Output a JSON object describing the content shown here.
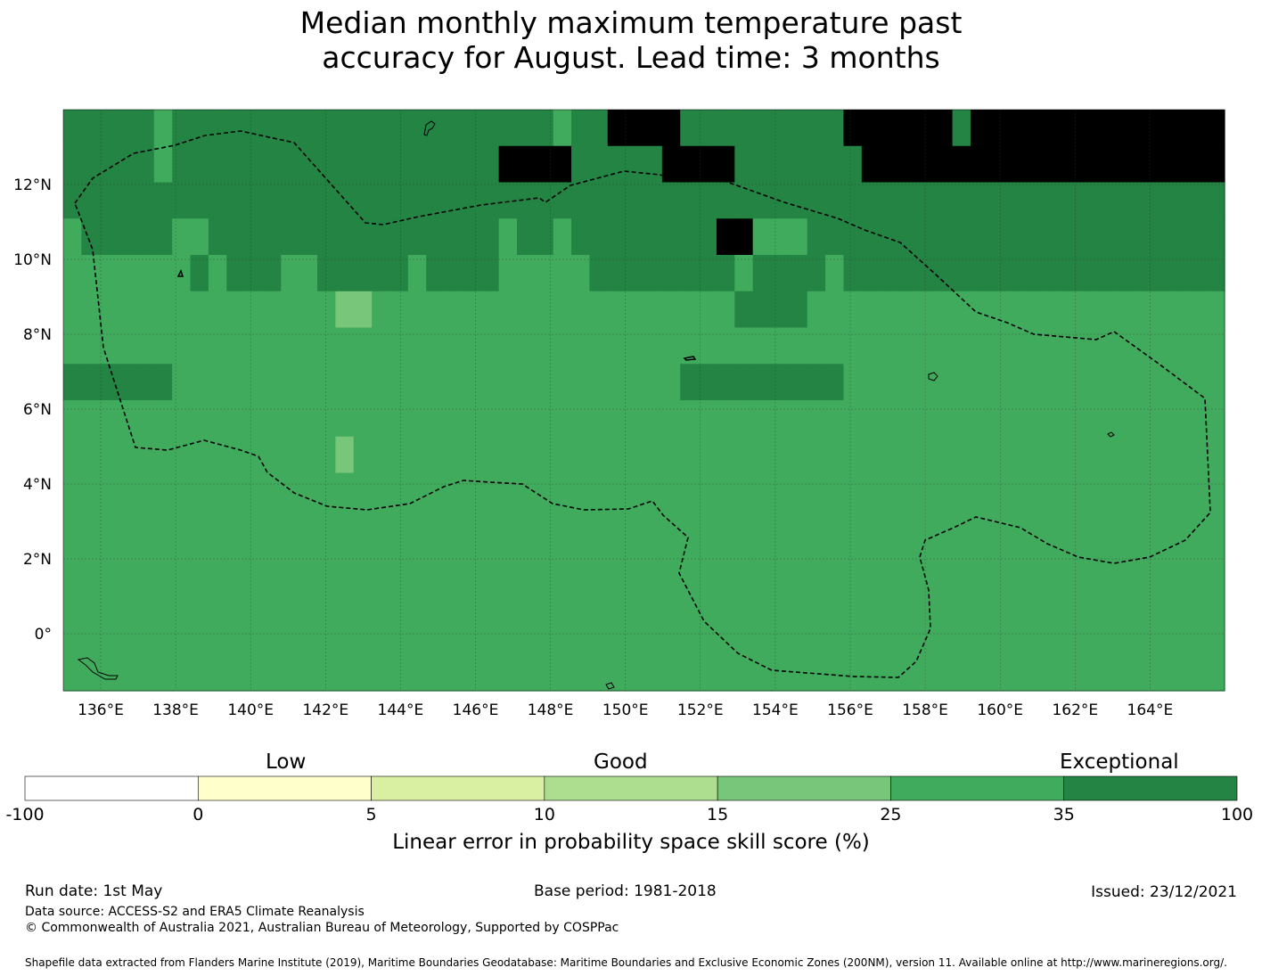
{
  "title_line1": "Median monthly maximum temperature past",
  "title_line2": "accuracy for August. Lead time: 3 months",
  "colorbar": {
    "categories": {
      "low": "Low",
      "good": "Good",
      "exceptional": "Exceptional"
    },
    "ticks": [
      "-100",
      "0",
      "5",
      "10",
      "15",
      "25",
      "35",
      "100"
    ],
    "colors": [
      "#ffffff",
      "#ffffcc",
      "#d9f0a3",
      "#addd8e",
      "#78c679",
      "#41ab5d",
      "#238443"
    ],
    "label": "Linear error in probability space skill score (%)"
  },
  "map": {
    "lon_labels": [
      "136°E",
      "138°E",
      "140°E",
      "142°E",
      "144°E",
      "146°E",
      "148°E",
      "150°E",
      "152°E",
      "154°E",
      "156°E",
      "158°E",
      "160°E",
      "162°E",
      "164°E"
    ],
    "lat_labels": [
      "12°N",
      "10°N",
      "8°N",
      "6°N",
      "4°N",
      "2°N",
      "0°"
    ],
    "grid_rows": [
      "6666656666666666666666666665667777666666666777777677777777777777",
      "6666656666666666666666667777666667777666666677777777777777777777",
      "6666666666666666666666666666666666666666666666666666666666666666",
      "5666665566666666666666665665666666667755566666666666666666666666",
      "5555555656665566666566665555566666666566665666666666666666666666",
      "5555555555555554455555555555555555555666655555555555555555555555",
      "5555555555555555555555555555555555555555555555555555555555555555",
      "6666665555555555555555555555555555666666666555555555555555555555",
      "5555555555555555555555555555555555555555555555555555555555555555",
      "5555555555555554555555555555555555555555555555555555555555555555",
      "5555555555555555555555555555555555555555555555555555555555555555",
      "5555555555555555555555555555555555555555555555555555555555555555",
      "5555555555555555555555555555555555555555555555555555555555555555",
      "5555555555555555555555555555555555555555555555555555555555555555",
      "5555555555555555555555555555555555555555555555555555555555555555",
      "5555555555555555555555555555555555555555555555555555555555555555"
    ]
  },
  "footer": {
    "run_date": "Run date: 1st May",
    "base_period": "Base period: 1981-2018",
    "issued": "Issued: 23/12/2021",
    "data_source": "Data source: ACCESS-S2 and ERA5 Climate Reanalysis",
    "copyright": "© Commonwealth of Australia 2021, Australian Bureau of Meteorology, Supported by COSPPac",
    "shapefile": "Shapefile data extracted from Flanders Marine Institute (2019), Maritime Boundaries Geodatabase: Maritime Boundaries and Exclusive Economic Zones (200NM), version 11. Available online at http://www.marineregions.org/."
  }
}
